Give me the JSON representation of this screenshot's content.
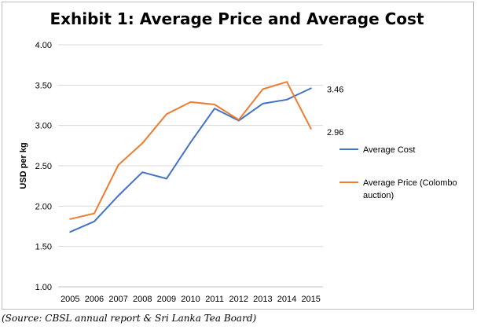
{
  "chart_data": {
    "type": "line",
    "title": "Exhibit 1: Average Price and Average Cost",
    "ylabel": "USD per kg",
    "xlabel": "",
    "ylim": [
      1.0,
      4.0
    ],
    "yticks": [
      "1.00",
      "1.50",
      "2.00",
      "2.50",
      "3.00",
      "3.50",
      "4.00"
    ],
    "ytick_values": [
      1.0,
      1.5,
      2.0,
      2.5,
      3.0,
      3.5,
      4.0
    ],
    "categories": [
      "2005",
      "2006",
      "2007",
      "2008",
      "2009",
      "2010",
      "2011",
      "2012",
      "2013",
      "2014",
      "2015"
    ],
    "grid": "horizontal",
    "legend_position": "right",
    "series": [
      {
        "name": "Average Cost",
        "color": "#4472c4",
        "values": [
          1.68,
          1.81,
          2.13,
          2.42,
          2.34,
          2.79,
          3.21,
          3.06,
          3.27,
          3.32,
          3.46
        ],
        "end_label": "3.46"
      },
      {
        "name": "Average Price (Colombo auction)",
        "legend_lines": [
          "Average Price (Colombo",
          "auction)"
        ],
        "color": "#ed7d31",
        "values": [
          1.84,
          1.91,
          2.51,
          2.78,
          3.14,
          3.29,
          3.26,
          3.07,
          3.45,
          3.54,
          2.96
        ],
        "end_label": "2.96"
      }
    ]
  },
  "source": "(Source: CBSL annual report & Sri Lanka Tea Board)"
}
